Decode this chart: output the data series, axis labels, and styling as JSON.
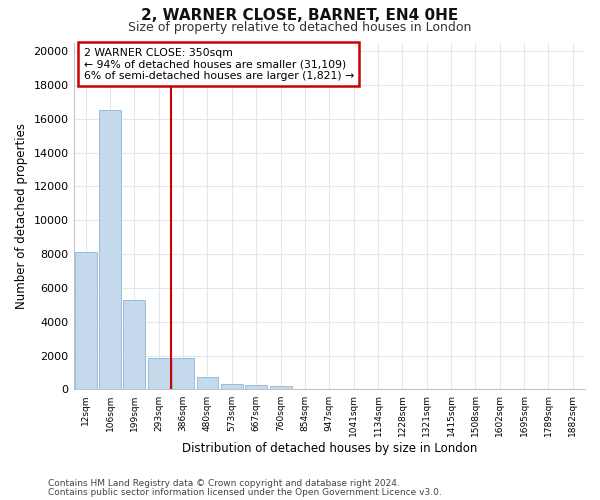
{
  "title1": "2, WARNER CLOSE, BARNET, EN4 0HE",
  "title2": "Size of property relative to detached houses in London",
  "xlabel": "Distribution of detached houses by size in London",
  "ylabel": "Number of detached properties",
  "categories": [
    "12sqm",
    "106sqm",
    "199sqm",
    "293sqm",
    "386sqm",
    "480sqm",
    "573sqm",
    "667sqm",
    "760sqm",
    "854sqm",
    "947sqm",
    "1041sqm",
    "1134sqm",
    "1228sqm",
    "1321sqm",
    "1415sqm",
    "1508sqm",
    "1602sqm",
    "1695sqm",
    "1789sqm",
    "1882sqm"
  ],
  "values": [
    8100,
    16500,
    5300,
    1850,
    1850,
    750,
    330,
    270,
    220,
    0,
    0,
    0,
    0,
    0,
    0,
    0,
    0,
    0,
    0,
    0,
    0
  ],
  "bar_color": "#c5d9ed",
  "bar_edge_color": "#9dbbd9",
  "vline_x": 4.0,
  "vline_color": "#cc0000",
  "annotation_line1": "2 WARNER CLOSE: 350sqm",
  "annotation_line2": "← 94% of detached houses are smaller (31,109)",
  "annotation_line3": "6% of semi-detached houses are larger (1,821) →",
  "annotation_box_edgecolor": "#cc0000",
  "ylim_max": 20500,
  "yticks": [
    0,
    2000,
    4000,
    6000,
    8000,
    10000,
    12000,
    14000,
    16000,
    18000,
    20000
  ],
  "footer1": "Contains HM Land Registry data © Crown copyright and database right 2024.",
  "footer2": "Contains public sector information licensed under the Open Government Licence v3.0.",
  "bg_color": "#ffffff",
  "grid_color": "#dde8f0"
}
